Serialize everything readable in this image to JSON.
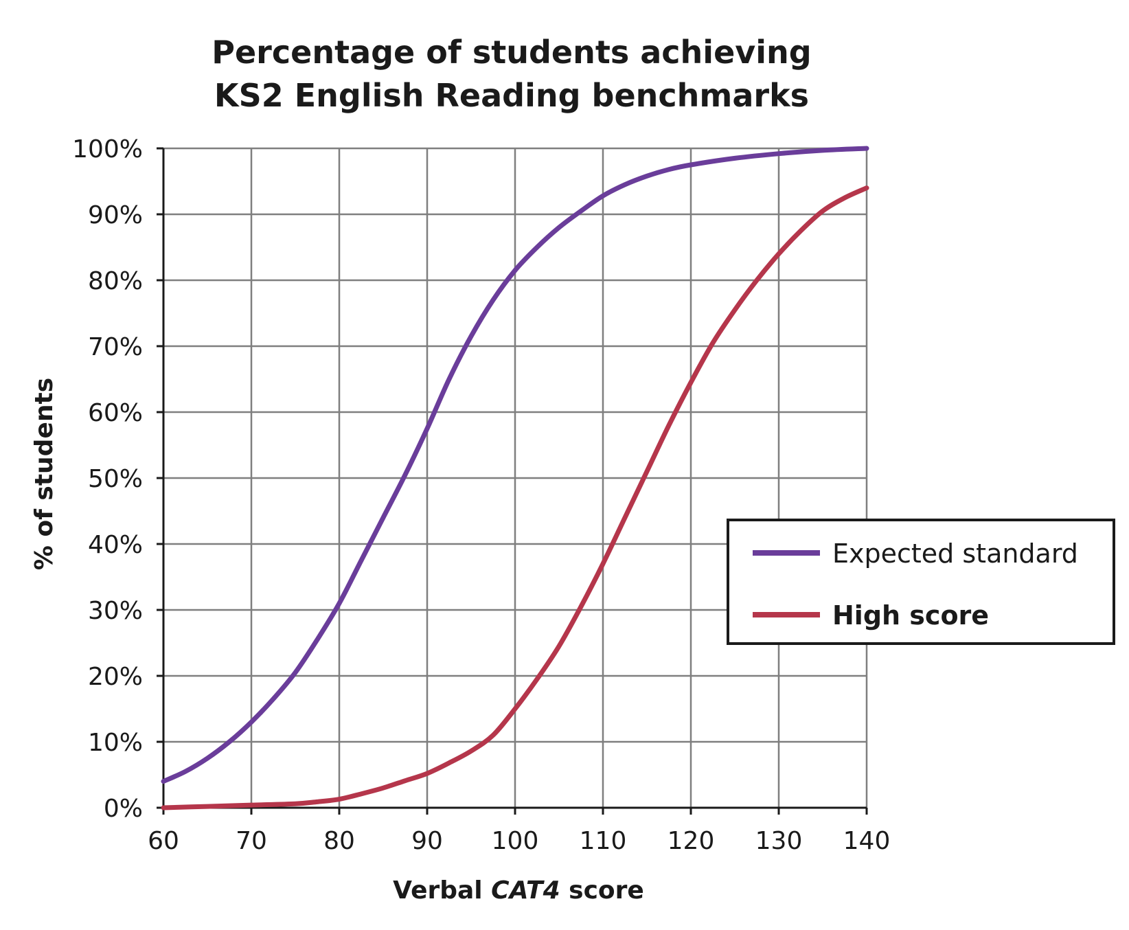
{
  "chart_data": {
    "type": "line",
    "title_lines": [
      "Percentage of students achieving",
      "KS2 English Reading benchmarks"
    ],
    "xlabel_parts": [
      {
        "text": "Verbal ",
        "italic": false
      },
      {
        "text": "CAT4",
        "italic": true
      },
      {
        "text": " score",
        "italic": false
      }
    ],
    "ylabel": "% of students",
    "xlim": [
      60,
      140
    ],
    "ylim": [
      0,
      100
    ],
    "x_ticks": [
      "60",
      "70",
      "80",
      "90",
      "100",
      "110",
      "120",
      "130",
      "140"
    ],
    "x_tick_values": [
      60,
      70,
      80,
      90,
      100,
      110,
      120,
      130,
      140
    ],
    "y_ticks": [
      "0%",
      "10%",
      "20%",
      "30%",
      "40%",
      "50%",
      "60%",
      "70%",
      "80%",
      "90%",
      "100%"
    ],
    "y_tick_values": [
      0,
      10,
      20,
      30,
      40,
      50,
      60,
      70,
      80,
      90,
      100
    ],
    "grid": true,
    "legend_position": "center-right",
    "series": [
      {
        "name": "Expected standard",
        "legend_bold": false,
        "color": "#6a3d9a",
        "x": [
          60,
          62.5,
          65,
          67.5,
          70,
          72.5,
          75,
          77.5,
          80,
          82.5,
          85,
          87.5,
          90,
          92.5,
          95,
          97.5,
          100,
          102.5,
          105,
          107.5,
          110,
          112.5,
          115,
          117.5,
          120,
          125,
          130,
          135,
          140
        ],
        "y": [
          4,
          5.5,
          7.5,
          10,
          13,
          16.5,
          20.5,
          25.5,
          31,
          37.5,
          44,
          50.5,
          57.5,
          65,
          71.5,
          77,
          81.5,
          85,
          88,
          90.5,
          92.8,
          94.5,
          95.8,
          96.8,
          97.5,
          98.5,
          99.2,
          99.7,
          100
        ]
      },
      {
        "name": "High score",
        "legend_bold": true,
        "color": "#b5364b",
        "x": [
          60,
          65,
          70,
          75,
          77.5,
          80,
          82.5,
          85,
          87.5,
          90,
          92.5,
          95,
          97.5,
          100,
          102.5,
          105,
          107.5,
          110,
          112.5,
          115,
          117.5,
          120,
          122.5,
          125,
          127.5,
          130,
          132.5,
          135,
          137.5,
          140
        ],
        "y": [
          0,
          0.2,
          0.4,
          0.6,
          0.9,
          1.3,
          2.1,
          3,
          4.1,
          5.2,
          6.8,
          8.6,
          11,
          15,
          19.5,
          24.5,
          30.5,
          37,
          44,
          51,
          58,
          64.5,
          70.5,
          75.5,
          80,
          84,
          87.5,
          90.5,
          92.5,
          94
        ]
      }
    ]
  }
}
